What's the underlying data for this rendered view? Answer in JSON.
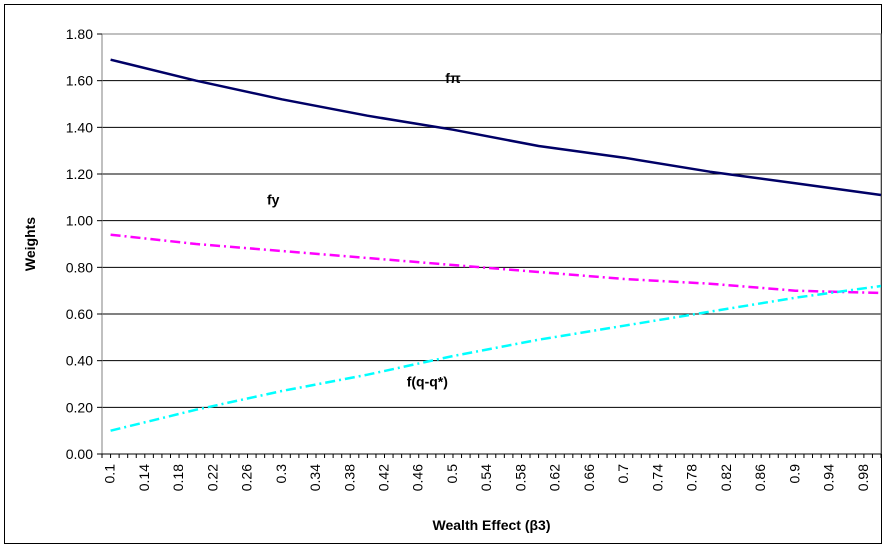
{
  "chart_data": {
    "type": "line",
    "xlabel": "Wealth Effect (β3)",
    "ylabel": "Weights",
    "ylim": [
      0,
      1.8
    ],
    "y_ticks": [
      "0.00",
      "0.20",
      "0.40",
      "0.60",
      "0.80",
      "1.00",
      "1.20",
      "1.40",
      "1.60",
      "1.80"
    ],
    "x_tick_labels": [
      "0.1",
      "0.14",
      "0.18",
      "0.22",
      "0.26",
      "0.3",
      "0.34",
      "0.38",
      "0.42",
      "0.46",
      "0.5",
      "0.54",
      "0.58",
      "0.62",
      "0.66",
      "0.7",
      "0.74",
      "0.78",
      "0.82",
      "0.86",
      "0.9",
      "0.94",
      "0.98"
    ],
    "grid": "horizontal",
    "legend": "none",
    "series": [
      {
        "name": "fπ",
        "color": "#000066",
        "style": "solid",
        "x": [
          0.1,
          0.2,
          0.3,
          0.4,
          0.5,
          0.6,
          0.7,
          0.8,
          0.9,
          1.0
        ],
        "values": [
          1.69,
          1.6,
          1.52,
          1.45,
          1.39,
          1.32,
          1.27,
          1.21,
          1.16,
          1.11
        ]
      },
      {
        "name": "fy",
        "color": "#ff00ff",
        "style": "dash-dot",
        "x": [
          0.1,
          0.2,
          0.3,
          0.4,
          0.5,
          0.6,
          0.7,
          0.8,
          0.9,
          1.0
        ],
        "values": [
          0.94,
          0.9,
          0.87,
          0.84,
          0.81,
          0.78,
          0.75,
          0.73,
          0.7,
          0.69
        ]
      },
      {
        "name": "f(q-q*)",
        "color": "#00ffff",
        "style": "dash-dot",
        "x": [
          0.1,
          0.2,
          0.3,
          0.4,
          0.5,
          0.6,
          0.7,
          0.8,
          0.9,
          1.0
        ],
        "values": [
          0.1,
          0.19,
          0.27,
          0.34,
          0.42,
          0.49,
          0.55,
          0.61,
          0.67,
          0.72
        ]
      }
    ]
  }
}
